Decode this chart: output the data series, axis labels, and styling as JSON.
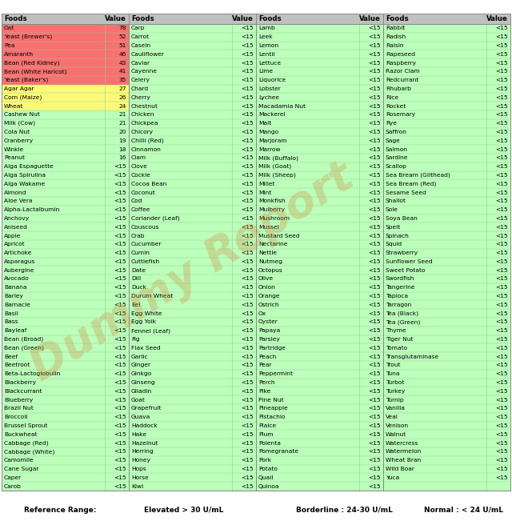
{
  "col1": [
    [
      "Oat",
      "78"
    ],
    [
      "Yeast (Brewer's)",
      "52"
    ],
    [
      "Pea",
      "51"
    ],
    [
      "Amaranth",
      "46"
    ],
    [
      "Bean (Red Kidney)",
      "43"
    ],
    [
      "Bean (White Haricot)",
      "41"
    ],
    [
      "Yeast (Baker's)",
      "35"
    ],
    [
      "Agar Agar",
      "27"
    ],
    [
      "Corn (Maize)",
      "26"
    ],
    [
      "Wheat",
      "24"
    ],
    [
      "Cashew Nut",
      "21"
    ],
    [
      "Milk (Cow)",
      "21"
    ],
    [
      "Cola Nut",
      "20"
    ],
    [
      "Cranberry",
      "19"
    ],
    [
      "Winkle",
      "18"
    ],
    [
      "Peanut",
      "16"
    ],
    [
      "Alga Espaguette",
      "<15"
    ],
    [
      "Alga Spirulina",
      "<15"
    ],
    [
      "Alga Wakame",
      "<15"
    ],
    [
      "Almond",
      "<15"
    ],
    [
      "Aloe Vera",
      "<15"
    ],
    [
      "Alpha-Lactalbumin",
      "<15"
    ],
    [
      "Anchovy",
      "<15"
    ],
    [
      "Aniseed",
      "<15"
    ],
    [
      "Apple",
      "<15"
    ],
    [
      "Apricot",
      "<15"
    ],
    [
      "Artichoke",
      "<15"
    ],
    [
      "Asparagus",
      "<15"
    ],
    [
      "Aubergine",
      "<15"
    ],
    [
      "Avocado",
      "<15"
    ],
    [
      "Banana",
      "<15"
    ],
    [
      "Barley",
      "<15"
    ],
    [
      "Barnacle",
      "<15"
    ],
    [
      "Basil",
      "<15"
    ],
    [
      "Bass",
      "<15"
    ],
    [
      "Bayleaf",
      "<15"
    ],
    [
      "Bean (Broad)",
      "<15"
    ],
    [
      "Bean (Green)",
      "<15"
    ],
    [
      "Beef",
      "<15"
    ],
    [
      "Beetroot",
      "<15"
    ],
    [
      "Beta-Lactoglobulin",
      "<15"
    ],
    [
      "Blackberry",
      "<15"
    ],
    [
      "Blackcurrant",
      "<15"
    ],
    [
      "Blueberry",
      "<15"
    ],
    [
      "Brazil Nut",
      "<15"
    ],
    [
      "Broccoli",
      "<15"
    ],
    [
      "Brussel Sprout",
      "<15"
    ],
    [
      "Buckwheat",
      "<15"
    ],
    [
      "Cabbage (Red)",
      "<15"
    ],
    [
      "Cabbage (White)",
      "<15"
    ],
    [
      "Camomile",
      "<15"
    ],
    [
      "Cane Sugar",
      "<15"
    ],
    [
      "Caper",
      "<15"
    ],
    [
      "Carob",
      "<15"
    ]
  ],
  "col1_bg": [
    "#F87171",
    "#F87171",
    "#F87171",
    "#F87171",
    "#F87171",
    "#F87171",
    "#F87171",
    "#FAFA78",
    "#FAFA78",
    "#FAFA78",
    "#BBFFBB",
    "#BBFFBB",
    "#BBFFBB",
    "#BBFFBB",
    "#BBFFBB",
    "#BBFFBB",
    "#BBFFBB",
    "#BBFFBB",
    "#BBFFBB",
    "#BBFFBB",
    "#BBFFBB",
    "#BBFFBB",
    "#BBFFBB",
    "#BBFFBB",
    "#BBFFBB",
    "#BBFFBB",
    "#BBFFBB",
    "#BBFFBB",
    "#BBFFBB",
    "#BBFFBB",
    "#BBFFBB",
    "#BBFFBB",
    "#BBFFBB",
    "#BBFFBB",
    "#BBFFBB",
    "#BBFFBB",
    "#BBFFBB",
    "#BBFFBB",
    "#BBFFBB",
    "#BBFFBB",
    "#BBFFBB",
    "#BBFFBB",
    "#BBFFBB",
    "#BBFFBB",
    "#BBFFBB",
    "#BBFFBB",
    "#BBFFBB",
    "#BBFFBB",
    "#BBFFBB",
    "#BBFFBB",
    "#BBFFBB",
    "#BBFFBB",
    "#BBFFBB",
    "#BBFFBB"
  ],
  "col2": [
    [
      "Carp",
      "<15"
    ],
    [
      "Carrot",
      "<15"
    ],
    [
      "Casein",
      "<15"
    ],
    [
      "Cauliflower",
      "<15"
    ],
    [
      "Caviar",
      "<15"
    ],
    [
      "Cayenne",
      "<15"
    ],
    [
      "Celery",
      "<15"
    ],
    [
      "Chard",
      "<15"
    ],
    [
      "Cherry",
      "<15"
    ],
    [
      "Chestnut",
      "<15"
    ],
    [
      "Chicken",
      "<15"
    ],
    [
      "Chickpea",
      "<15"
    ],
    [
      "Chicory",
      "<15"
    ],
    [
      "Chilli (Red)",
      "<15"
    ],
    [
      "Cinnamon",
      "<15"
    ],
    [
      "Clam",
      "<15"
    ],
    [
      "Clove",
      "<15"
    ],
    [
      "Cockie",
      "<15"
    ],
    [
      "Cocoa Bean",
      "<15"
    ],
    [
      "Coconut",
      "<15"
    ],
    [
      "Cod",
      "<15"
    ],
    [
      "Coffee",
      "<15"
    ],
    [
      "Coriander (Leaf)",
      "<15"
    ],
    [
      "Couscous",
      "<15"
    ],
    [
      "Crab",
      "<15"
    ],
    [
      "Cucumber",
      "<15"
    ],
    [
      "Cumin",
      "<15"
    ],
    [
      "Cuttlefish",
      "<15"
    ],
    [
      "Date",
      "<15"
    ],
    [
      "Dill",
      "<15"
    ],
    [
      "Duck",
      "<15"
    ],
    [
      "Durum Wheat",
      "<15"
    ],
    [
      "Eel",
      "<15"
    ],
    [
      "Egg White",
      "<15"
    ],
    [
      "Egg Yolk",
      "<15"
    ],
    [
      "Fennel (Leaf)",
      "<15"
    ],
    [
      "Fig",
      "<15"
    ],
    [
      "Flax Seed",
      "<15"
    ],
    [
      "Garlic",
      "<15"
    ],
    [
      "Ginger",
      "<15"
    ],
    [
      "Ginkgo",
      "<15"
    ],
    [
      "Ginseng",
      "<15"
    ],
    [
      "Gliadin",
      "<15"
    ],
    [
      "Goat",
      "<15"
    ],
    [
      "Grapefruit",
      "<15"
    ],
    [
      "Guava",
      "<15"
    ],
    [
      "Haddock",
      "<15"
    ],
    [
      "Hake",
      "<15"
    ],
    [
      "Hazelnut",
      "<15"
    ],
    [
      "Herring",
      "<15"
    ],
    [
      "Honey",
      "<15"
    ],
    [
      "Hops",
      "<15"
    ],
    [
      "Horse",
      "<15"
    ],
    [
      "Kiwi",
      "<15"
    ]
  ],
  "col3": [
    [
      "Lamb",
      "<15"
    ],
    [
      "Leek",
      "<15"
    ],
    [
      "Lemon",
      "<15"
    ],
    [
      "Lentil",
      "<15"
    ],
    [
      "Lettuce",
      "<15"
    ],
    [
      "Lime",
      "<15"
    ],
    [
      "Liquorice",
      "<15"
    ],
    [
      "Lobster",
      "<15"
    ],
    [
      "Lychee",
      "<15"
    ],
    [
      "Macadamia Nut",
      "<15"
    ],
    [
      "Mackerel",
      "<15"
    ],
    [
      "Malt",
      "<15"
    ],
    [
      "Mango",
      "<15"
    ],
    [
      "Marjoram",
      "<15"
    ],
    [
      "Marrow",
      "<15"
    ],
    [
      "Milk (Buffalo)",
      "<15"
    ],
    [
      "Milk (Goat)",
      "<15"
    ],
    [
      "Milk (Sheep)",
      "<15"
    ],
    [
      "Millet",
      "<15"
    ],
    [
      "Mint",
      "<15"
    ],
    [
      "Monkfish",
      "<15"
    ],
    [
      "Mulberry",
      "<15"
    ],
    [
      "Mushroom",
      "<15"
    ],
    [
      "Mussel",
      "<15"
    ],
    [
      "Mustard Seed",
      "<15"
    ],
    [
      "Nectarine",
      "<15"
    ],
    [
      "Nettle",
      "<15"
    ],
    [
      "Nutmeg",
      "<15"
    ],
    [
      "Octopus",
      "<15"
    ],
    [
      "Olive",
      "<15"
    ],
    [
      "Onion",
      "<15"
    ],
    [
      "Orange",
      "<15"
    ],
    [
      "Ostrich",
      "<15"
    ],
    [
      "Ox",
      "<15"
    ],
    [
      "Oyster",
      "<15"
    ],
    [
      "Papaya",
      "<15"
    ],
    [
      "Parsley",
      "<15"
    ],
    [
      "Partridge",
      "<15"
    ],
    [
      "Peach",
      "<15"
    ],
    [
      "Pear",
      "<15"
    ],
    [
      "Peppermint",
      "<15"
    ],
    [
      "Perch",
      "<15"
    ],
    [
      "Pike",
      "<15"
    ],
    [
      "Pine Nut",
      "<15"
    ],
    [
      "Pineapple",
      "<15"
    ],
    [
      "Pistachio",
      "<15"
    ],
    [
      "Plaice",
      "<15"
    ],
    [
      "Plum",
      "<15"
    ],
    [
      "Polenta",
      "<15"
    ],
    [
      "Pomegranate",
      "<15"
    ],
    [
      "Pork",
      "<15"
    ],
    [
      "Potato",
      "<15"
    ],
    [
      "Quail",
      "<15"
    ],
    [
      "Quinoa",
      "<15"
    ]
  ],
  "col4": [
    [
      "Rabbit",
      "<15"
    ],
    [
      "Radish",
      "<15"
    ],
    [
      "Raisin",
      "<15"
    ],
    [
      "Rapeseed",
      "<15"
    ],
    [
      "Raspberry",
      "<15"
    ],
    [
      "Razor Clam",
      "<15"
    ],
    [
      "Redcurrant",
      "<15"
    ],
    [
      "Rhubarb",
      "<15"
    ],
    [
      "Rice",
      "<15"
    ],
    [
      "Rocket",
      "<15"
    ],
    [
      "Rosemary",
      "<15"
    ],
    [
      "Rye",
      "<15"
    ],
    [
      "Saffron",
      "<15"
    ],
    [
      "Sage",
      "<15"
    ],
    [
      "Salmon",
      "<15"
    ],
    [
      "Sardine",
      "<15"
    ],
    [
      "Scallop",
      "<15"
    ],
    [
      "Sea Bream (Gilthead)",
      "<15"
    ],
    [
      "Sea Bream (Red)",
      "<15"
    ],
    [
      "Sesame Seed",
      "<15"
    ],
    [
      "Shallot",
      "<15"
    ],
    [
      "Sole",
      "<15"
    ],
    [
      "Soya Bean",
      "<15"
    ],
    [
      "Spelt",
      "<15"
    ],
    [
      "Spinach",
      "<15"
    ],
    [
      "Squid",
      "<15"
    ],
    [
      "Strawberry",
      "<15"
    ],
    [
      "Sunflower Seed",
      "<15"
    ],
    [
      "Sweet Potato",
      "<15"
    ],
    [
      "Swordfish",
      "<15"
    ],
    [
      "Tangerine",
      "<15"
    ],
    [
      "Tapioca",
      "<15"
    ],
    [
      "Tarragon",
      "<15"
    ],
    [
      "Tea (Black)",
      "<15"
    ],
    [
      "Tea (Green)",
      "<15"
    ],
    [
      "Thyme",
      "<15"
    ],
    [
      "Tiger Nut",
      "<15"
    ],
    [
      "Tomato",
      "<15"
    ],
    [
      "Transglutaminase",
      "<15"
    ],
    [
      "Trout",
      "<15"
    ],
    [
      "Tuna",
      "<15"
    ],
    [
      "Turbot",
      "<15"
    ],
    [
      "Turkey",
      "<15"
    ],
    [
      "Turnip",
      "<15"
    ],
    [
      "Vanilla",
      "<15"
    ],
    [
      "Veal",
      "<15"
    ],
    [
      "Venison",
      "<15"
    ],
    [
      "Walnut",
      "<15"
    ],
    [
      "Watercress",
      "<15"
    ],
    [
      "Watermelon",
      "<15"
    ],
    [
      "Wheat Bran",
      "<15"
    ],
    [
      "Wild Boar",
      "<15"
    ],
    [
      "Yuca",
      "<15"
    ]
  ],
  "header_bg": "#C0C0C0",
  "green_bg": "#BBFFBB",
  "red_bg": "#F87171",
  "yellow_bg": "#FAFA78",
  "bg_color": "#FFFFFF",
  "border_color": "#888888",
  "grid_color": "#99CC99",
  "footer_ref": "Reference Range:",
  "footer_elevated": "Elevated > 30 U/mL",
  "footer_borderline": "Borderline : 24-30 U/mL",
  "footer_normal": "Normal : < 24 U/mL",
  "watermark_text": "Dummy Report",
  "watermark_color": "#D4883A",
  "watermark_alpha": 0.3
}
